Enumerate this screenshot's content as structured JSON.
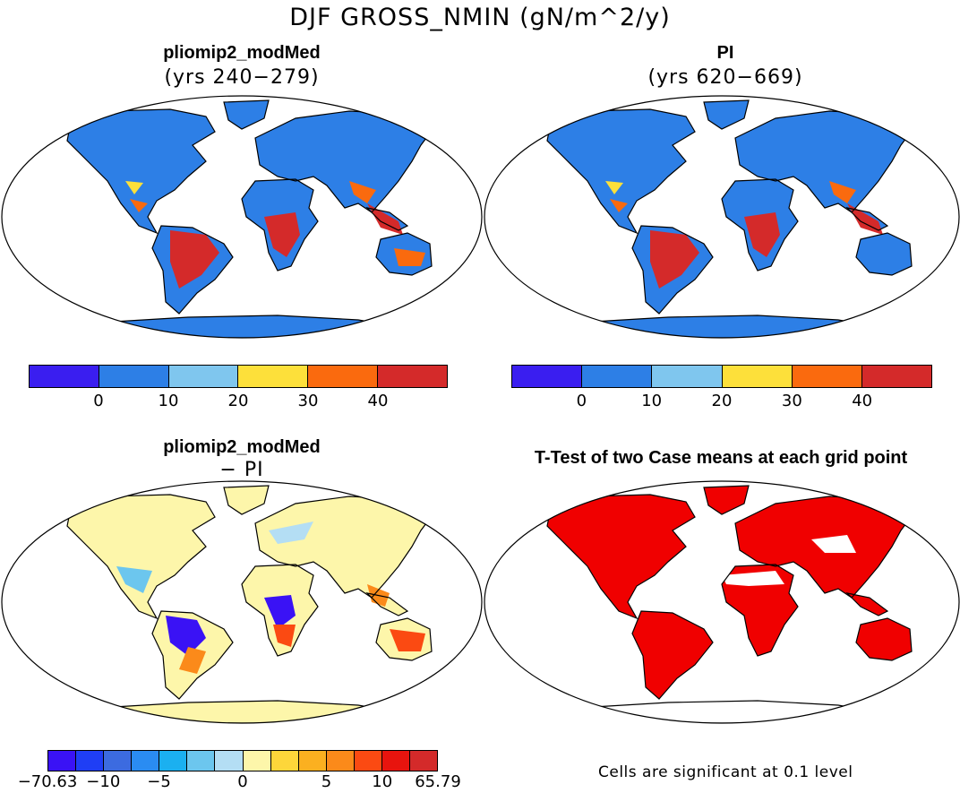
{
  "title": "DJF GROSS_NMIN (gN/m^2/y)",
  "panels": [
    {
      "title": "pliomip2_modMed",
      "subtitle": "(yrs 240−279)"
    },
    {
      "title": "PI",
      "subtitle": "(yrs 620−669)"
    },
    {
      "title": "pliomip2_modMed",
      "subtitle": "− PI"
    },
    {
      "title": "T-Test of two Case means at each grid point",
      "subtitle": ""
    }
  ],
  "colorbar_top": {
    "colors": [
      "#3a1ef0",
      "#2d7fe6",
      "#7fc6ee",
      "#fde03a",
      "#fa6a0e",
      "#d42a2a"
    ],
    "ticks": [
      "0",
      "10",
      "20",
      "30",
      "40"
    ]
  },
  "colorbar_diff": {
    "colors": [
      "#3a12f5",
      "#1f3ef5",
      "#3c6be0",
      "#2a8cf2",
      "#1bb0f0",
      "#6cc6ee",
      "#b4def4",
      "#fdf6aa",
      "#fdd63a",
      "#fbb020",
      "#fb8a1a",
      "#fb4a12",
      "#e8140e",
      "#d42a2a"
    ],
    "ticks": [
      "−70.63",
      "−10",
      "−5",
      "0",
      "5",
      "10",
      "65.79"
    ]
  },
  "significance_note": "Cells are significant at 0.1 level"
}
